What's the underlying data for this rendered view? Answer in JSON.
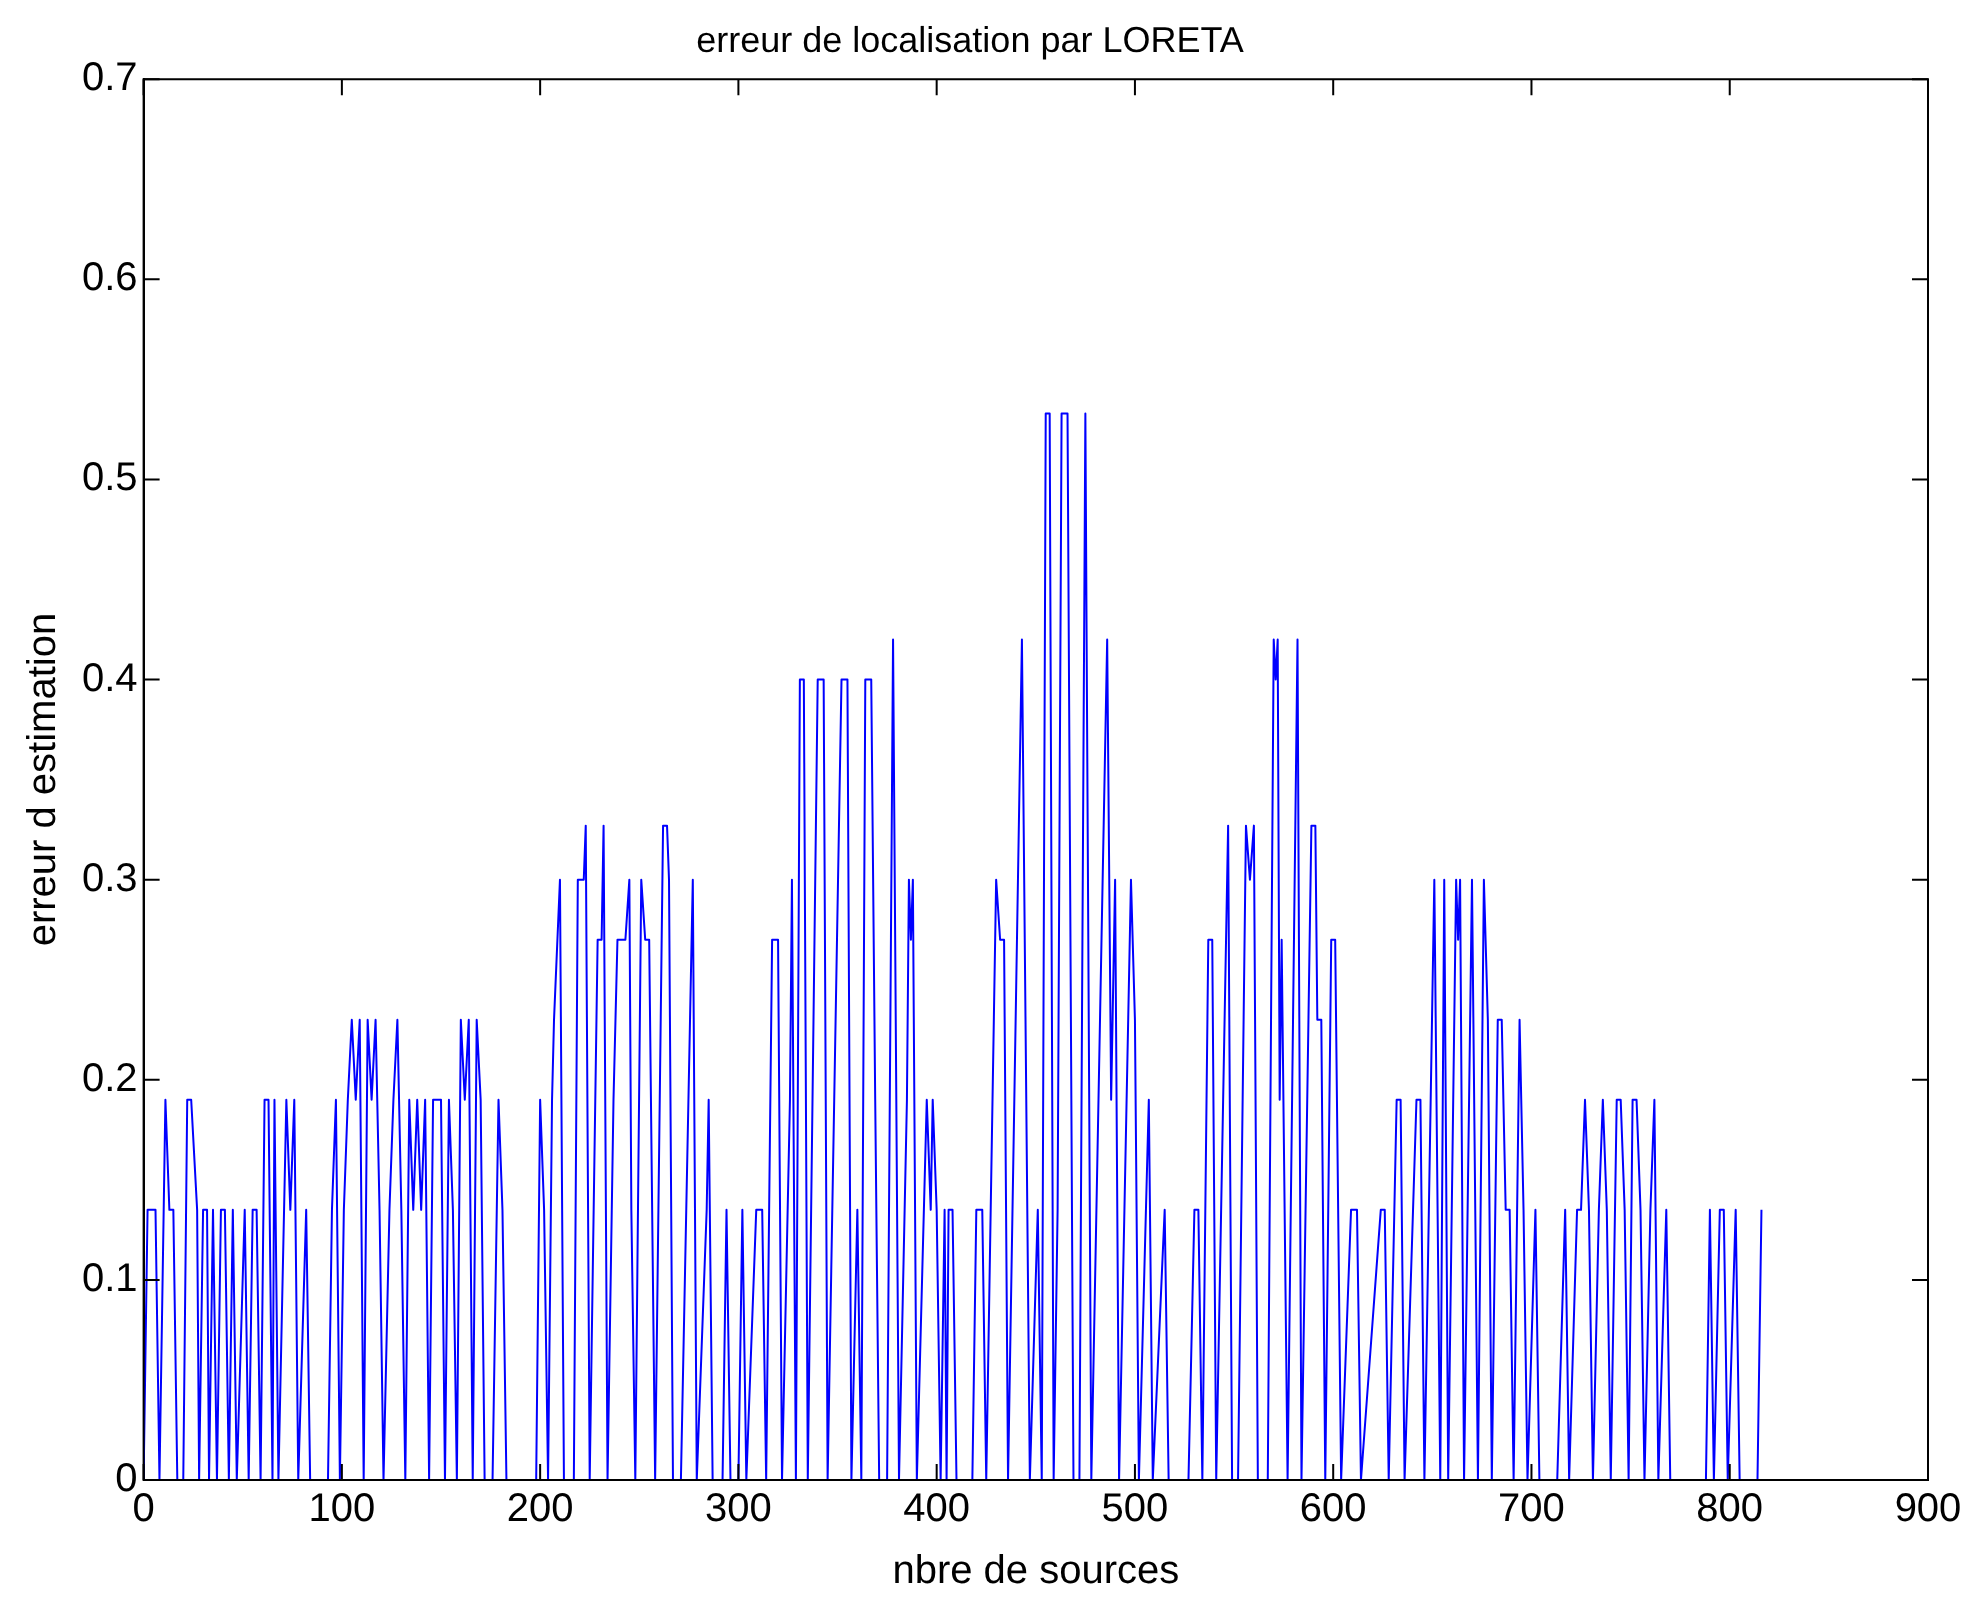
{
  "chart_data": {
    "type": "line",
    "title": "erreur de localisation par LORETA",
    "xlabel": "nbre de sources",
    "ylabel": "erreur d estimation",
    "xlim": [
      0,
      900
    ],
    "xticks": [
      0,
      100,
      200,
      300,
      400,
      500,
      600,
      700,
      800,
      900
    ],
    "ylim": [
      0,
      0.7
    ],
    "yticks": [
      0,
      0.1,
      0.2,
      0.3,
      0.4,
      0.5,
      0.6,
      0.7
    ],
    "grid": false,
    "marker": "none",
    "line_style": "solid",
    "series": [
      {
        "color": "#0000ff",
        "x": [
          0,
          2,
          6,
          8,
          11,
          13,
          15,
          17,
          20,
          22,
          24,
          27,
          28,
          30,
          32,
          33,
          35,
          37,
          39,
          41,
          43,
          45,
          47,
          51,
          53,
          55,
          57,
          59,
          61,
          63,
          65,
          66,
          68,
          72,
          74,
          76,
          78,
          82,
          84,
          93,
          95,
          97,
          99,
          101,
          103,
          105,
          107,
          109,
          111,
          113,
          115,
          117,
          119,
          121,
          124,
          126,
          128,
          130,
          132,
          134,
          136,
          138,
          140,
          142,
          144,
          146,
          150,
          152,
          154,
          156,
          158,
          160,
          162,
          164,
          166,
          168,
          170,
          172,
          176,
          179,
          181,
          183,
          198,
          200,
          202,
          204,
          206,
          207,
          210,
          212,
          217,
          219,
          222,
          223,
          225,
          229,
          231,
          232,
          234,
          237,
          239,
          243,
          245,
          246,
          248,
          251,
          253,
          255,
          258,
          262,
          264,
          265,
          267,
          271,
          277,
          279,
          284,
          285,
          287,
          292,
          294,
          296,
          300,
          302,
          304,
          309,
          312,
          314,
          317,
          320,
          322,
          326,
          327,
          329,
          331,
          333,
          335,
          340,
          343,
          345,
          352,
          355,
          357,
          360,
          362,
          364,
          367,
          369,
          371,
          375,
          378,
          381,
          385,
          386,
          387,
          388,
          390,
          395,
          397,
          398,
          400,
          402,
          404,
          405,
          406,
          408,
          410,
          418,
          420,
          423,
          425,
          430,
          432,
          434,
          436,
          443,
          447,
          451,
          453,
          455,
          457,
          459,
          461,
          463,
          466,
          469,
          472,
          475,
          478,
          486,
          488,
          490,
          492,
          498,
          500,
          502,
          507,
          509,
          515,
          517,
          527,
          530,
          532,
          534,
          537,
          539,
          541,
          547,
          549,
          552,
          556,
          558,
          560,
          562,
          567,
          570,
          571,
          572,
          573,
          574,
          577,
          582,
          584,
          589,
          591,
          592,
          594,
          596,
          599,
          601,
          604,
          609,
          612,
          614,
          624,
          626,
          628,
          632,
          634,
          636,
          642,
          644,
          646,
          651,
          654,
          656,
          658,
          662,
          663,
          664,
          666,
          670,
          673,
          676,
          678,
          680,
          683,
          685,
          687,
          689,
          691,
          694,
          696,
          698,
          702,
          704,
          713,
          717,
          719,
          723,
          725,
          727,
          729,
          731,
          734,
          736,
          738,
          740,
          743,
          745,
          747,
          749,
          751,
          753,
          755,
          757,
          760,
          762,
          764,
          768,
          770,
          788,
          790,
          792,
          795,
          797,
          799,
          803,
          805,
          814,
          816
        ],
        "values": [
          0,
          0.135,
          0.135,
          0,
          0.19,
          0.135,
          0.135,
          0,
          0,
          0.19,
          0.19,
          0.135,
          0,
          0.135,
          0.135,
          0,
          0.135,
          0,
          0.135,
          0.135,
          0,
          0.135,
          0,
          0.135,
          0,
          0.135,
          0.135,
          0,
          0.19,
          0.19,
          0,
          0.19,
          0,
          0.19,
          0.135,
          0.19,
          0,
          0.135,
          0,
          0,
          0.135,
          0.19,
          0,
          0.135,
          0.19,
          0.23,
          0.19,
          0.23,
          0,
          0.23,
          0.19,
          0.23,
          0.135,
          0,
          0.135,
          0.19,
          0.23,
          0.135,
          0,
          0.19,
          0.135,
          0.19,
          0.135,
          0.19,
          0,
          0.19,
          0.19,
          0,
          0.19,
          0.135,
          0,
          0.23,
          0.19,
          0.23,
          0,
          0.23,
          0.19,
          0,
          0,
          0.19,
          0.135,
          0,
          0,
          0.19,
          0.135,
          0,
          0.19,
          0.23,
          0.3,
          0,
          0,
          0.3,
          0.3,
          0.327,
          0,
          0.27,
          0.27,
          0.327,
          0,
          0.19,
          0.27,
          0.27,
          0.3,
          0.135,
          0,
          0.3,
          0.27,
          0.27,
          0,
          0.327,
          0.327,
          0.3,
          0,
          0,
          0.3,
          0,
          0.135,
          0.19,
          0,
          0,
          0.135,
          0,
          0,
          0.135,
          0,
          0.135,
          0.135,
          0,
          0.27,
          0.27,
          0,
          0.19,
          0.3,
          0,
          0.4,
          0.4,
          0,
          0.4,
          0.4,
          0,
          0.4,
          0.4,
          0,
          0.135,
          0,
          0.4,
          0.4,
          0.19,
          0,
          0,
          0.42,
          0,
          0.19,
          0.3,
          0.27,
          0.3,
          0,
          0.19,
          0.135,
          0.19,
          0.135,
          0,
          0.135,
          0,
          0.135,
          0.135,
          0,
          0,
          0.135,
          0.135,
          0,
          0.3,
          0.27,
          0.27,
          0,
          0.42,
          0,
          0.135,
          0,
          0.533,
          0.533,
          0,
          0.135,
          0.533,
          0.533,
          0,
          0,
          0.533,
          0,
          0.42,
          0.19,
          0.3,
          0,
          0.3,
          0.23,
          0,
          0.19,
          0,
          0.135,
          0,
          0,
          0.135,
          0.135,
          0,
          0.27,
          0.27,
          0,
          0.327,
          0,
          0,
          0.327,
          0.3,
          0.327,
          0,
          0,
          0.42,
          0.4,
          0.42,
          0.19,
          0.27,
          0,
          0.42,
          0,
          0.327,
          0.327,
          0.23,
          0.23,
          0,
          0.27,
          0.27,
          0,
          0.135,
          0.135,
          0,
          0.135,
          0.135,
          0,
          0.19,
          0.19,
          0,
          0.19,
          0.19,
          0,
          0.3,
          0,
          0.3,
          0,
          0.3,
          0.27,
          0.3,
          0,
          0.3,
          0,
          0.3,
          0.23,
          0,
          0.23,
          0.23,
          0.135,
          0.135,
          0,
          0.23,
          0.135,
          0,
          0.135,
          0,
          0,
          0.135,
          0,
          0.135,
          0.135,
          0.19,
          0.135,
          0,
          0.135,
          0.19,
          0.135,
          0,
          0.19,
          0.19,
          0.135,
          0,
          0.19,
          0.19,
          0.135,
          0,
          0.135,
          0.19,
          0,
          0.135,
          0,
          0,
          0.135,
          0,
          0.135,
          0.135,
          0,
          0.135,
          0,
          0,
          0.135
        ]
      }
    ]
  }
}
